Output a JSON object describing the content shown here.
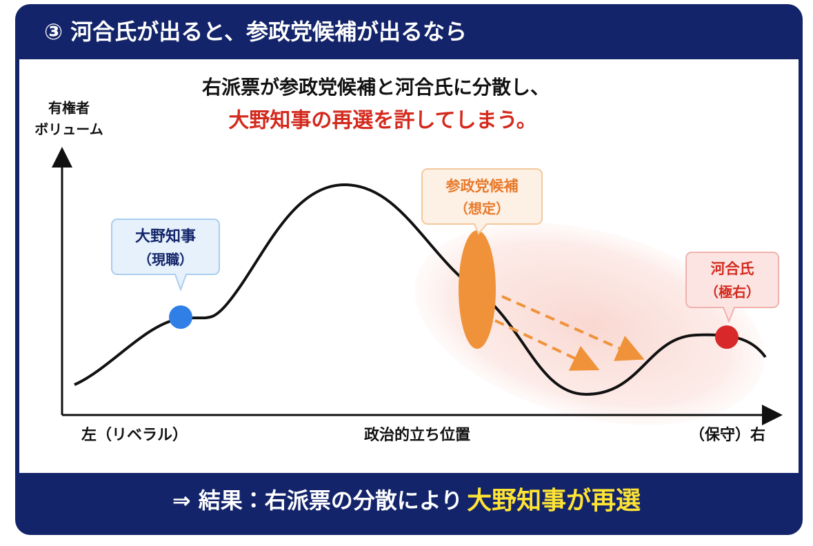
{
  "header": {
    "title": "③ 河合氏が出ると、参政党候補が出るなら"
  },
  "subtitle": {
    "line1": "右派票が参政党候補と河合氏に分散し、",
    "line2": "大野知事の再選を許してしまう。"
  },
  "y_axis": {
    "line1": "有権者",
    "line2": "ボリューム"
  },
  "x_axis": {
    "left": "左（リベラル）",
    "center": "政治的立ち位置",
    "right": "（保守）右"
  },
  "callouts": [
    {
      "name": "大野知事",
      "note": "（現職）"
    },
    {
      "name": "参政党候補",
      "note": "（想定）"
    },
    {
      "name": "河合氏",
      "note": "（極右）"
    }
  ],
  "footer": {
    "text": "⇒ 結果：右派票の分散により",
    "highlight": "大野知事が再選"
  }
}
